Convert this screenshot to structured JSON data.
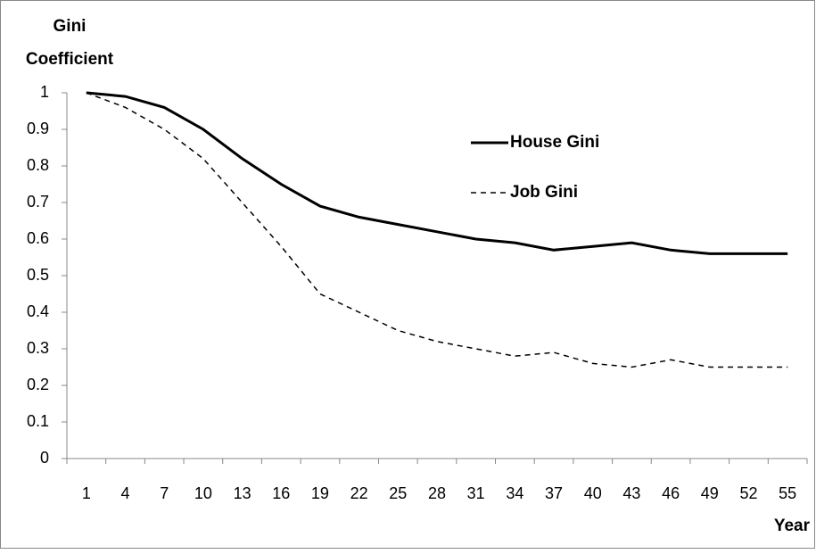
{
  "chart_data": {
    "type": "line",
    "y_label": [
      "Gini",
      "Coefficient"
    ],
    "x_label": "Year",
    "categories": [
      "1",
      "4",
      "7",
      "10",
      "13",
      "16",
      "19",
      "22",
      "25",
      "28",
      "31",
      "34",
      "37",
      "40",
      "43",
      "46",
      "49",
      "52",
      "55"
    ],
    "series": [
      {
        "name": "House Gini",
        "color": "#000000",
        "dash": "solid",
        "values": [
          1,
          0.99,
          0.96,
          0.9,
          0.82,
          0.75,
          0.69,
          0.66,
          0.64,
          0.62,
          0.6,
          0.59,
          0.57,
          0.58,
          0.59,
          0.57,
          0.56,
          0.56,
          0.56
        ]
      },
      {
        "name": "Job Gini",
        "color": "#000000",
        "dash": "dashed",
        "values": [
          1,
          0.96,
          0.9,
          0.82,
          0.7,
          0.58,
          0.45,
          0.4,
          0.35,
          0.32,
          0.3,
          0.28,
          0.29,
          0.26,
          0.25,
          0.27,
          0.25,
          0.25,
          0.25
        ]
      }
    ],
    "ylim": [
      0,
      1
    ],
    "yticks": [
      0,
      0.1,
      0.2,
      0.3,
      0.4,
      0.5,
      0.6,
      0.7,
      0.8,
      0.9,
      1
    ],
    "grid": false,
    "legend": "upper right"
  }
}
